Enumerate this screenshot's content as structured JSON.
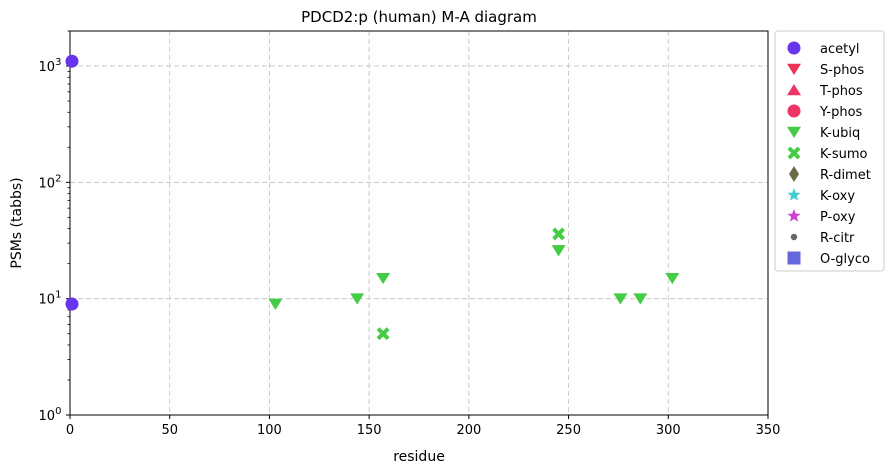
{
  "chart_data": {
    "type": "scatter",
    "title": "PDCD2:p (human) M-A diagram",
    "xlabel": "residue",
    "ylabel": "PSMs (tabbs)",
    "xlim": [
      0,
      350
    ],
    "ylim": [
      1,
      2000
    ],
    "yscale": "log",
    "grid": true,
    "legend_position": "outside-right",
    "x_ticks": [
      "0",
      "50",
      "100",
      "150",
      "200",
      "250",
      "300",
      "350"
    ],
    "y_ticks": [
      {
        "base": "10",
        "exp": "0",
        "value": 1
      },
      {
        "base": "10",
        "exp": "1",
        "value": 10
      },
      {
        "base": "10",
        "exp": "2",
        "value": 100
      },
      {
        "base": "10",
        "exp": "3",
        "value": 1000
      }
    ],
    "series": [
      {
        "name": "acetyl",
        "color": "#6633ee",
        "marker": "circle",
        "points": [
          [
            1,
            1100
          ],
          [
            1,
            9
          ]
        ]
      },
      {
        "name": "S-phos",
        "color": "#ee3355",
        "marker": "triangle-down",
        "points": []
      },
      {
        "name": "T-phos",
        "color": "#ee3366",
        "marker": "triangle-up",
        "points": []
      },
      {
        "name": "Y-phos",
        "color": "#ee3366",
        "marker": "circle",
        "points": []
      },
      {
        "name": "K-ubiq",
        "color": "#44cc44",
        "marker": "triangle-down",
        "points": [
          [
            103,
            9
          ],
          [
            144,
            10
          ],
          [
            157,
            15
          ],
          [
            245,
            26
          ],
          [
            276,
            10
          ],
          [
            286,
            10
          ],
          [
            302,
            15
          ]
        ]
      },
      {
        "name": "K-sumo",
        "color": "#44cc44",
        "marker": "x-cross",
        "points": [
          [
            157,
            5
          ],
          [
            245,
            36
          ]
        ]
      },
      {
        "name": "R-dimet",
        "color": "#6b6b45",
        "marker": "diamond",
        "points": []
      },
      {
        "name": "K-oxy",
        "color": "#44cccc",
        "marker": "star",
        "points": []
      },
      {
        "name": "P-oxy",
        "color": "#cc44cc",
        "marker": "star",
        "points": []
      },
      {
        "name": "R-citr",
        "color": "#666666",
        "marker": "small-circle",
        "points": []
      },
      {
        "name": "O-glyco",
        "color": "#6666dd",
        "marker": "square",
        "points": []
      }
    ]
  }
}
